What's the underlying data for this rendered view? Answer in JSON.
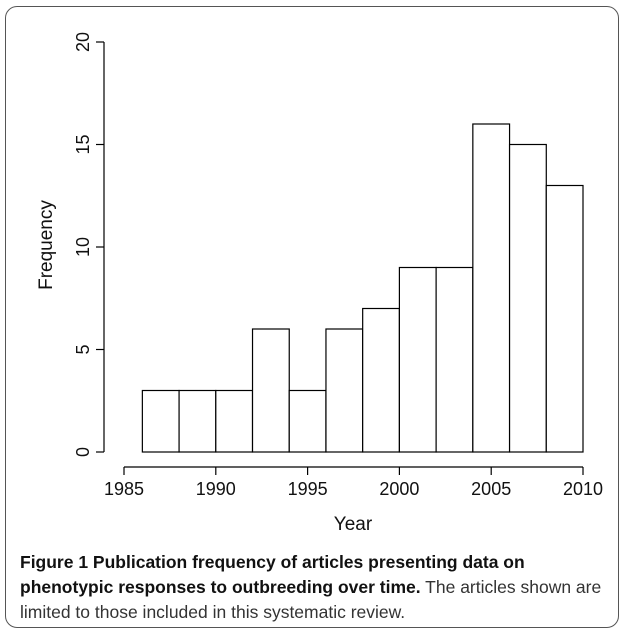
{
  "chart_data": {
    "type": "bar",
    "title": "",
    "xlabel": "Year",
    "ylabel": "Frequency",
    "bins": [
      {
        "start": 1986,
        "end": 1988,
        "value": 3
      },
      {
        "start": 1988,
        "end": 1990,
        "value": 3
      },
      {
        "start": 1990,
        "end": 1992,
        "value": 3
      },
      {
        "start": 1992,
        "end": 1994,
        "value": 6
      },
      {
        "start": 1994,
        "end": 1996,
        "value": 3
      },
      {
        "start": 1996,
        "end": 1998,
        "value": 6
      },
      {
        "start": 1998,
        "end": 2000,
        "value": 7
      },
      {
        "start": 2000,
        "end": 2002,
        "value": 9
      },
      {
        "start": 2002,
        "end": 2004,
        "value": 9
      },
      {
        "start": 2004,
        "end": 2006,
        "value": 16
      },
      {
        "start": 2006,
        "end": 2008,
        "value": 15
      },
      {
        "start": 2008,
        "end": 2010,
        "value": 13
      }
    ],
    "xlim": [
      1985,
      2010
    ],
    "ylim": [
      0,
      20
    ],
    "xticks": [
      "1985",
      "1990",
      "1995",
      "2000",
      "2005",
      "2010"
    ],
    "yticks": [
      "0",
      "5",
      "10",
      "15",
      "20"
    ],
    "grid": false,
    "colors": {
      "bar_fill": "#ffffff",
      "bar_stroke": "#000000"
    }
  },
  "caption": {
    "bold": "Figure 1 Publication frequency of articles presenting data on phenotypic responses to outbreeding over time.",
    "text": " The articles shown are limited to those included in this systematic review."
  }
}
